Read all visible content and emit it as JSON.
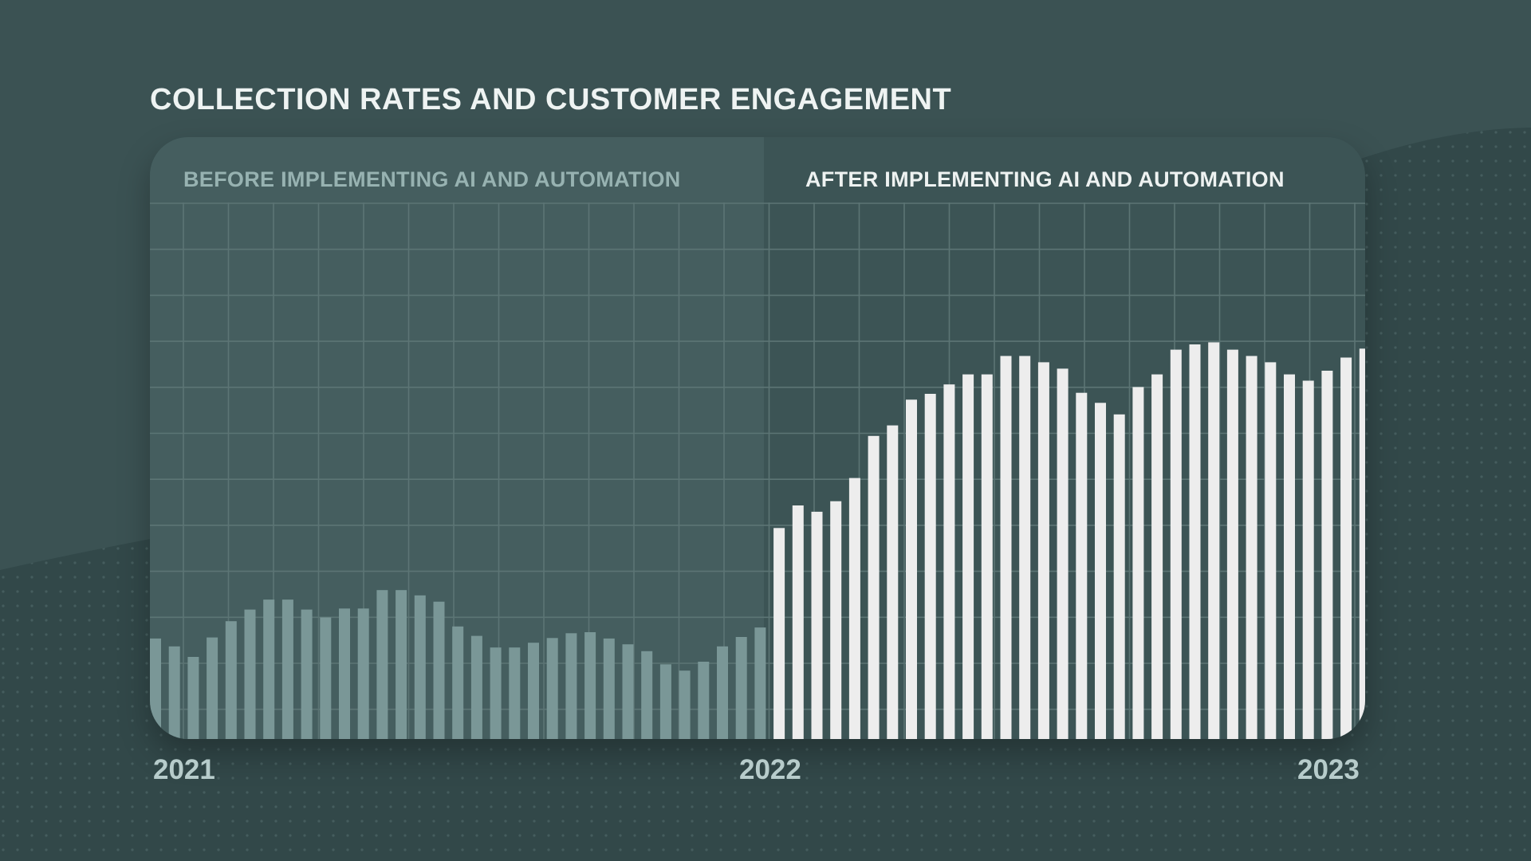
{
  "title": "COLLECTION RATES AND CUSTOMER ENGAGEMENT",
  "colors": {
    "background": "#3b5253",
    "panel": "#3c5455",
    "before_region": "#455e5f",
    "grid": "#5c7575",
    "before_bars": "#7a9797",
    "after_bars": "#ededed"
  },
  "chart_data": {
    "type": "bar",
    "title": "COLLECTION RATES AND CUSTOMER ENGAGEMENT",
    "xlabel": "",
    "ylabel": "",
    "ylim": [
      0,
      100
    ],
    "grid": true,
    "x_tick_labels": [
      "2021",
      "2022",
      "2023"
    ],
    "regions": [
      {
        "label": "BEFORE IMPLEMENTING AI AND AUTOMATION",
        "from_index": 0,
        "to_index": 32
      },
      {
        "label": "AFTER IMPLEMENTING AI AND AUTOMATION",
        "from_index": 33,
        "to_index": 64
      }
    ],
    "series": [
      {
        "name": "Before implementing AI and automation",
        "values": [
          19.1,
          17.6,
          15.6,
          19.3,
          22.4,
          24.6,
          26.5,
          26.5,
          24.6,
          23.1,
          24.8,
          24.8,
          28.3,
          28.3,
          27.3,
          26.1,
          21.4,
          19.6,
          17.4,
          17.4,
          18.3,
          19.2,
          20.1,
          20.3,
          19.1,
          18.0,
          16.7,
          14.2,
          13.0,
          14.7,
          17.6,
          19.4,
          21.2
        ]
      },
      {
        "name": "After implementing AI and automation",
        "values": [
          40.1,
          44.4,
          43.2,
          45.2,
          49.6,
          57.6,
          59.6,
          64.5,
          65.6,
          67.4,
          69.3,
          69.3,
          72.8,
          72.8,
          71.6,
          70.4,
          65.8,
          63.9,
          61.7,
          66.9,
          69.3,
          74.0,
          75.0,
          75.4,
          74.0,
          72.8,
          71.6,
          69.3,
          68.1,
          70.0,
          72.5,
          74.2
        ]
      }
    ]
  }
}
